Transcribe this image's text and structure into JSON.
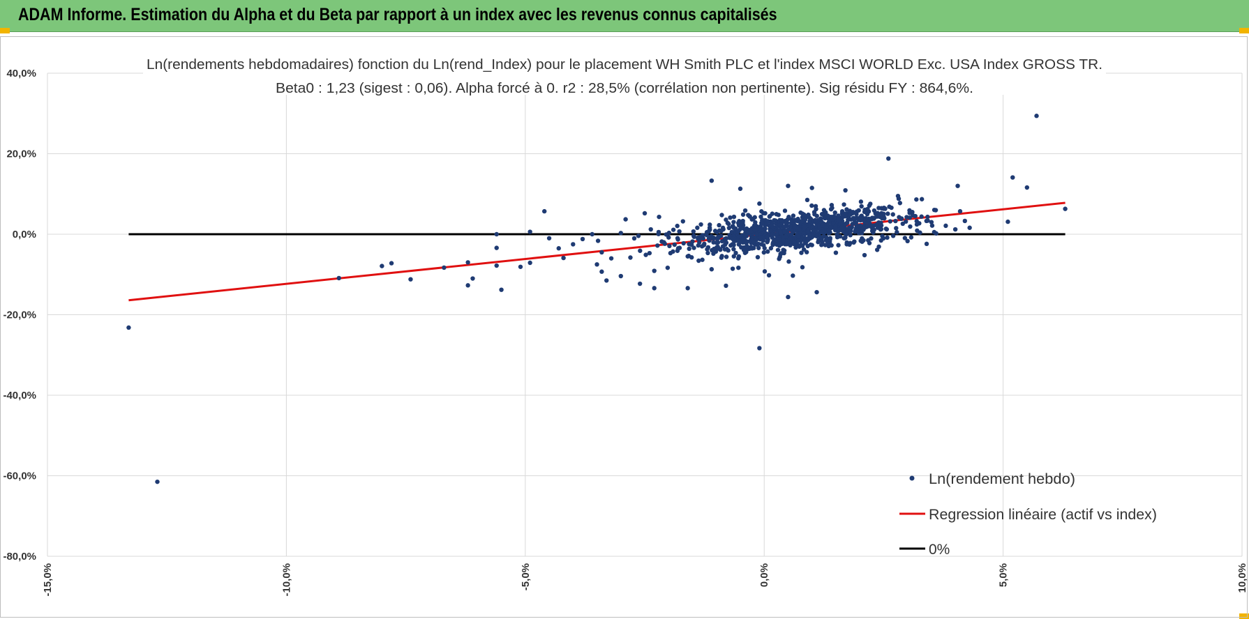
{
  "header": {
    "title": "ADAM Informe. Estimation du Alpha et du Beta par rapport à un index avec les revenus connus capitalisés"
  },
  "colors": {
    "banner": "#7dc67a",
    "points": "#1f3b73",
    "regression": "#e01010",
    "zero_line": "#000000",
    "grid": "#d9d9d9"
  },
  "chart_data": {
    "type": "scatter",
    "title": "Ln(rendements hebdomadaires) fonction du Ln(rend_Index) pour le placement WH Smith PLC et l'index MSCI WORLD Exc. USA Index GROSS TR.",
    "subtitle": "Beta0 : 1,23 (sigest : 0,06).  Alpha forcé à 0. r2 : 28,5% (corrélation non pertinente). Sig résidu FY : 864,6%.",
    "xlim": [
      -15,
      10
    ],
    "ylim": [
      -80,
      40
    ],
    "x_ticks": [
      "-15,0%",
      "-10,0%",
      "-5,0%",
      "0,0%",
      "5,0%",
      "10,0%"
    ],
    "y_ticks": [
      "40,0%",
      "20,0%",
      "0,0%",
      "-20,0%",
      "-40,0%",
      "-60,0%",
      "-80,0%"
    ],
    "grid": true,
    "legend_position": "bottom-right",
    "series": [
      {
        "name": "Ln(rendement hebdo)",
        "kind": "scatter",
        "points": [
          [
            -13.3,
            -23.2
          ],
          [
            -12.7,
            -61.5
          ],
          [
            -8.9,
            -10.9
          ],
          [
            -8.0,
            -7.9
          ],
          [
            -7.8,
            -7.2
          ],
          [
            -7.4,
            -11.2
          ],
          [
            -6.7,
            -8.3
          ],
          [
            -6.2,
            -7.0
          ],
          [
            -6.2,
            -12.7
          ],
          [
            -6.1,
            -11.0
          ],
          [
            -5.6,
            0.0
          ],
          [
            -5.6,
            -3.4
          ],
          [
            -5.5,
            -13.8
          ],
          [
            -5.6,
            -7.8
          ],
          [
            -5.1,
            -8.1
          ],
          [
            -4.9,
            -7.1
          ],
          [
            -4.9,
            0.6
          ],
          [
            -4.6,
            5.7
          ],
          [
            -4.5,
            -1.0
          ],
          [
            -4.3,
            -3.5
          ],
          [
            -4.2,
            -5.9
          ],
          [
            -4.0,
            -2.5
          ],
          [
            -3.8,
            -1.2
          ],
          [
            -3.6,
            0.0
          ],
          [
            -3.5,
            -7.5
          ],
          [
            -3.4,
            -4.5
          ],
          [
            -3.4,
            -9.3
          ],
          [
            -3.3,
            -11.5
          ],
          [
            -3.2,
            -6.0
          ],
          [
            -3.0,
            -10.4
          ],
          [
            -3.0,
            0.3
          ],
          [
            -2.9,
            3.7
          ],
          [
            -2.8,
            -5.8
          ],
          [
            -2.6,
            -12.3
          ],
          [
            -2.5,
            5.2
          ],
          [
            -2.4,
            -4.7
          ],
          [
            -2.3,
            -9.1
          ],
          [
            -2.3,
            -13.4
          ],
          [
            -2.2,
            4.3
          ],
          [
            -2.1,
            -2.0
          ],
          [
            -2.0,
            -0.8
          ],
          [
            -1.9,
            1.1
          ],
          [
            -1.8,
            -3.5
          ],
          [
            -1.7,
            3.2
          ],
          [
            -1.6,
            -5.5
          ],
          [
            -1.6,
            -13.4
          ],
          [
            -1.5,
            -1.8
          ],
          [
            -1.4,
            1.6
          ],
          [
            -1.3,
            -3.0
          ],
          [
            -1.2,
            0.5
          ],
          [
            -1.1,
            -8.7
          ],
          [
            -1.1,
            13.3
          ],
          [
            -1.0,
            -2.1
          ],
          [
            -0.9,
            0.8
          ],
          [
            -0.8,
            3.6
          ],
          [
            -0.8,
            -12.8
          ],
          [
            -0.7,
            -2.8
          ],
          [
            -0.6,
            1.4
          ],
          [
            -0.5,
            11.3
          ],
          [
            -0.4,
            -1.5
          ],
          [
            -0.3,
            0.2
          ],
          [
            -0.3,
            4.4
          ],
          [
            -0.2,
            -2.4
          ],
          [
            -0.1,
            7.6
          ],
          [
            -0.1,
            -28.3
          ],
          [
            -0.05,
            -0.6
          ],
          [
            0.0,
            1.3
          ],
          [
            0.1,
            -10.2
          ],
          [
            0.1,
            2.2
          ],
          [
            0.2,
            -1.9
          ],
          [
            0.3,
            0.7
          ],
          [
            0.3,
            4.8
          ],
          [
            0.4,
            -3.9
          ],
          [
            0.5,
            12.0
          ],
          [
            0.5,
            -15.6
          ],
          [
            0.6,
            -10.3
          ],
          [
            0.6,
            1.9
          ],
          [
            0.7,
            -1.2
          ],
          [
            0.8,
            5.1
          ],
          [
            0.8,
            -8.2
          ],
          [
            0.9,
            0.4
          ],
          [
            1.0,
            11.5
          ],
          [
            1.0,
            -2.7
          ],
          [
            1.1,
            -14.4
          ],
          [
            1.2,
            3.1
          ],
          [
            1.3,
            -0.8
          ],
          [
            1.4,
            6.2
          ],
          [
            1.5,
            -4.6
          ],
          [
            1.6,
            1.8
          ],
          [
            1.7,
            10.9
          ],
          [
            1.8,
            -2.2
          ],
          [
            1.9,
            3.9
          ],
          [
            2.0,
            0.6
          ],
          [
            2.1,
            -5.2
          ],
          [
            2.2,
            7.1
          ],
          [
            2.3,
            1.1
          ],
          [
            2.4,
            -3.1
          ],
          [
            2.5,
            4.4
          ],
          [
            2.6,
            18.8
          ],
          [
            2.7,
            -0.4
          ],
          [
            2.8,
            9.5
          ],
          [
            2.9,
            2.6
          ],
          [
            3.0,
            -1.7
          ],
          [
            3.1,
            5.5
          ],
          [
            3.2,
            0.9
          ],
          [
            3.3,
            8.7
          ],
          [
            3.4,
            -2.4
          ],
          [
            3.5,
            3.0
          ],
          [
            3.6,
            0.2
          ],
          [
            3.8,
            2.1
          ],
          [
            4.0,
            1.2
          ],
          [
            4.05,
            12.0
          ],
          [
            4.1,
            5.7
          ],
          [
            4.2,
            3.3
          ],
          [
            4.3,
            1.6
          ],
          [
            5.1,
            3.1
          ],
          [
            5.2,
            14.1
          ],
          [
            5.5,
            11.6
          ],
          [
            5.7,
            29.4
          ],
          [
            6.3,
            6.3
          ]
        ]
      },
      {
        "name": "Regression linéaire (actif vs index)",
        "kind": "line",
        "x": [
          -13.3,
          6.3
        ],
        "y": [
          -16.4,
          7.8
        ]
      },
      {
        "name": "0%",
        "kind": "line",
        "x": [
          -13.3,
          6.3
        ],
        "y": [
          0,
          0
        ]
      }
    ]
  }
}
